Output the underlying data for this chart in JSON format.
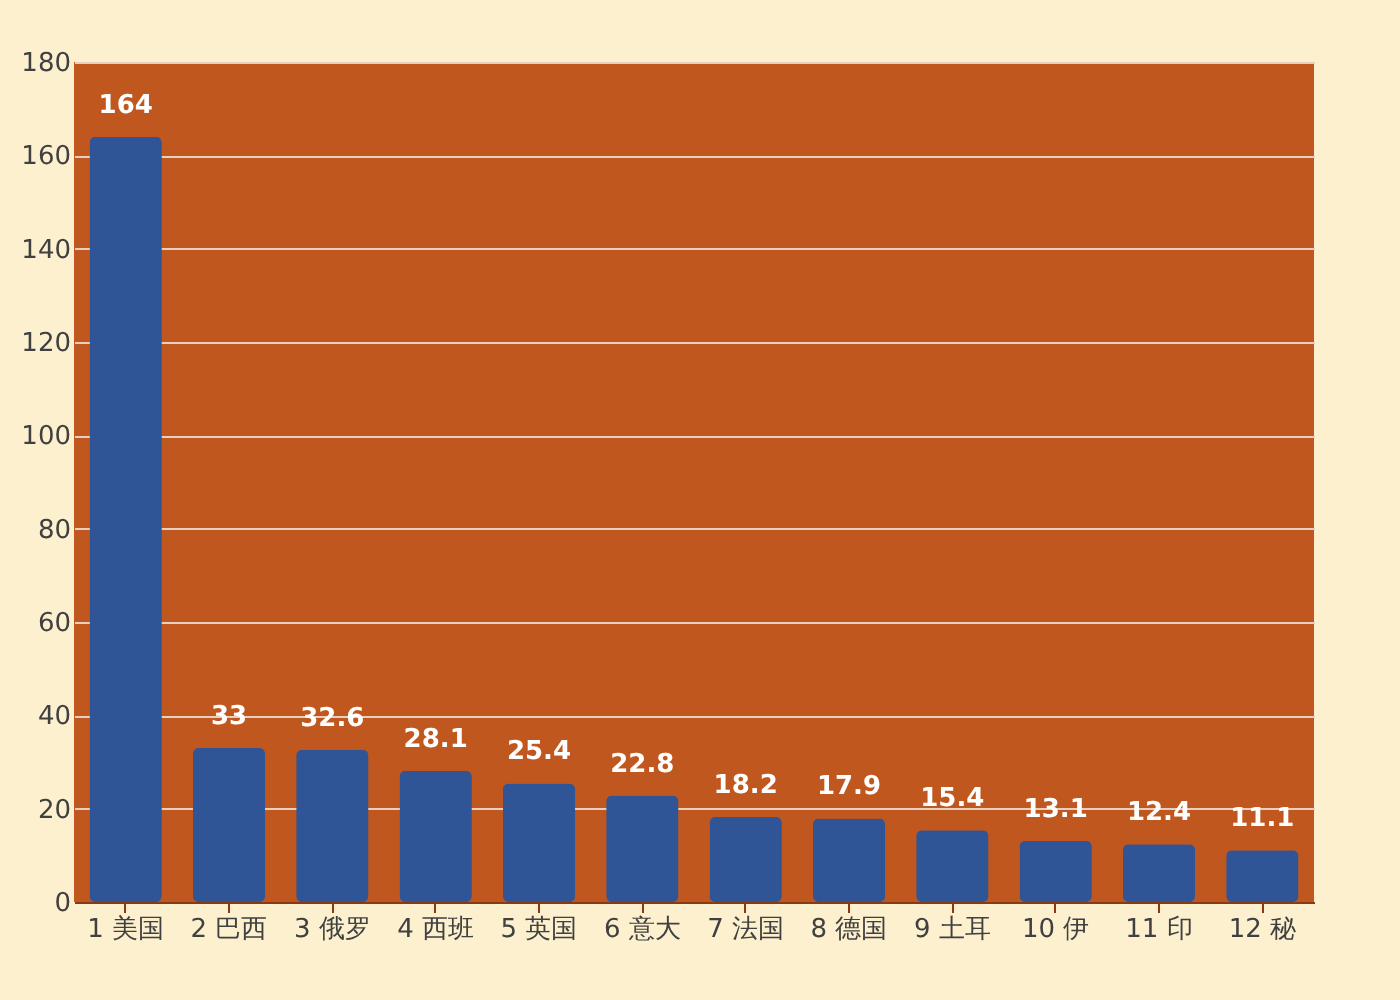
{
  "chart_data": {
    "type": "bar",
    "categories": [
      "1 美国",
      "2 巴西",
      "3 俄罗",
      "4 西班",
      "5 英国",
      "6 意大",
      "7 法国",
      "8 德国",
      "9 土耳",
      "10 伊",
      "11 印",
      "12 秘"
    ],
    "values": [
      164,
      33,
      32.6,
      28.1,
      25.4,
      22.8,
      18.2,
      17.9,
      15.4,
      13.1,
      12.4,
      11.1
    ],
    "color": "#2f5597",
    "ylim": [
      0,
      180
    ],
    "yticks": [
      0,
      20,
      40,
      60,
      80,
      100,
      120,
      140,
      160,
      180
    ],
    "grid": "y",
    "data_labels": true
  }
}
